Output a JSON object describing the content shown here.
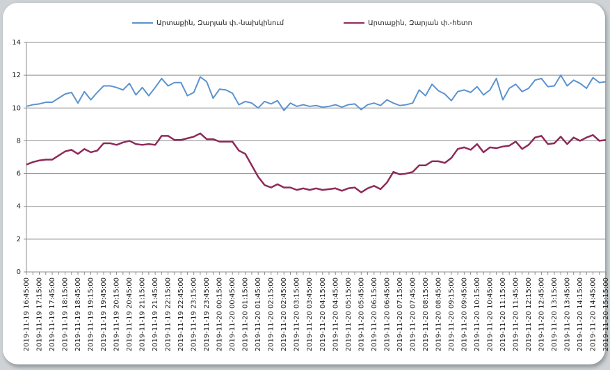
{
  "chart_data": {
    "type": "line",
    "categories": [
      "2019-11-19 16:45:00",
      null,
      "2019-11-19 17:15:00",
      null,
      "2019-11-19 17:45:00",
      null,
      "2019-11-19 18:15:00",
      null,
      "2019-11-19 18:45:00",
      null,
      "2019-11-19 19:15:00",
      null,
      "2019-11-19 19:45:00",
      null,
      "2019-11-19 20:15:00",
      null,
      "2019-11-19 20:45:00",
      null,
      "2019-11-19 21:15:00",
      null,
      "2019-11-19 21:45:00",
      null,
      "2019-11-19 22:15:00",
      null,
      "2019-11-19 22:45:00",
      null,
      "2019-11-19 23:15:00",
      null,
      "2019-11-19 23:45:00",
      null,
      "2019-11-20 00:15:00",
      null,
      "2019-11-20 00:45:00",
      null,
      "2019-11-20 01:15:00",
      null,
      "2019-11-20 01:45:00",
      null,
      "2019-11-20 02:15:00",
      null,
      "2019-11-20 02:45:00",
      null,
      "2019-11-20 03:15:00",
      null,
      "2019-11-20 03:45:00",
      null,
      "2019-11-20 04:15:00",
      null,
      "2019-11-20 04:45:00",
      null,
      "2019-11-20 05:15:00",
      null,
      "2019-11-20 05:45:00",
      null,
      "2019-11-20 06:15:00",
      null,
      "2019-11-20 06:45:00",
      null,
      "2019-11-20 07:15:00",
      null,
      "2019-11-20 07:45:00",
      null,
      "2019-11-20 08:15:00",
      null,
      "2019-11-20 08:45:00",
      null,
      "2019-11-20 09:15:00",
      null,
      "2019-11-20 09:45:00",
      null,
      "2019-11-20 10:15:00",
      null,
      "2019-11-20 10:45:00",
      null,
      "2019-11-20 11:15:00",
      null,
      "2019-11-20 11:45:00",
      null,
      "2019-11-20 12:15:00",
      null,
      "2019-11-20 12:45:00",
      null,
      "2019-11-20 13:15:00",
      null,
      "2019-11-20 13:45:00",
      null,
      "2019-11-20 14:15:00",
      null,
      "2019-11-20 14:45:00",
      null,
      "2019-11-20 15:15:00"
    ],
    "series": [
      {
        "name": "Արտաքին, Զարյան փ.-նախկինում",
        "color": "#5b93cf",
        "values": [
          10.1,
          10.2,
          10.25,
          10.35,
          10.35,
          10.6,
          10.85,
          10.95,
          10.3,
          11.0,
          10.5,
          10.95,
          11.35,
          11.35,
          11.25,
          11.1,
          11.5,
          10.8,
          11.25,
          10.75,
          11.25,
          11.8,
          11.35,
          11.55,
          11.55,
          10.75,
          10.95,
          11.9,
          11.6,
          10.6,
          11.15,
          11.1,
          10.9,
          10.2,
          10.4,
          10.3,
          10.0,
          10.4,
          10.25,
          10.45,
          9.85,
          10.3,
          10.1,
          10.2,
          10.1,
          10.15,
          10.05,
          10.1,
          10.2,
          10.05,
          10.2,
          10.25,
          9.9,
          10.2,
          10.3,
          10.15,
          10.5,
          10.3,
          10.15,
          10.2,
          10.3,
          11.1,
          10.75,
          11.45,
          11.05,
          10.85,
          10.45,
          11.0,
          11.1,
          10.95,
          11.3,
          10.8,
          11.1,
          11.8,
          10.5,
          11.2,
          11.45,
          11.0,
          11.2,
          11.7,
          11.8,
          11.3,
          11.35,
          12.0,
          11.35,
          11.7,
          11.5,
          11.2,
          11.85,
          11.55,
          11.6
        ]
      },
      {
        "name": "Արտաքին, Զարյան փ.-հետո",
        "color": "#8e2a5a",
        "values": [
          6.55,
          6.7,
          6.8,
          6.85,
          6.85,
          7.1,
          7.35,
          7.45,
          7.2,
          7.5,
          7.3,
          7.4,
          7.85,
          7.85,
          7.75,
          7.9,
          8.0,
          7.8,
          7.75,
          7.8,
          7.75,
          8.3,
          8.3,
          8.05,
          8.05,
          8.15,
          8.25,
          8.45,
          8.1,
          8.1,
          7.95,
          7.95,
          7.95,
          7.4,
          7.2,
          6.5,
          5.8,
          5.3,
          5.15,
          5.35,
          5.15,
          5.15,
          5.0,
          5.1,
          5.0,
          5.1,
          5.0,
          5.05,
          5.1,
          4.95,
          5.1,
          5.15,
          4.85,
          5.1,
          5.25,
          5.05,
          5.45,
          6.1,
          5.95,
          6.0,
          6.1,
          6.5,
          6.5,
          6.75,
          6.75,
          6.65,
          6.95,
          7.5,
          7.6,
          7.45,
          7.8,
          7.3,
          7.6,
          7.55,
          7.65,
          7.7,
          7.95,
          7.5,
          7.75,
          8.2,
          8.3,
          7.8,
          7.85,
          8.25,
          7.8,
          8.2,
          8.0,
          8.2,
          8.35,
          8.0,
          8.05
        ]
      }
    ],
    "ylim": [
      0,
      14
    ],
    "yticks": [
      0,
      2,
      4,
      6,
      8,
      10,
      12,
      14
    ],
    "grid": true,
    "legend": "top"
  }
}
